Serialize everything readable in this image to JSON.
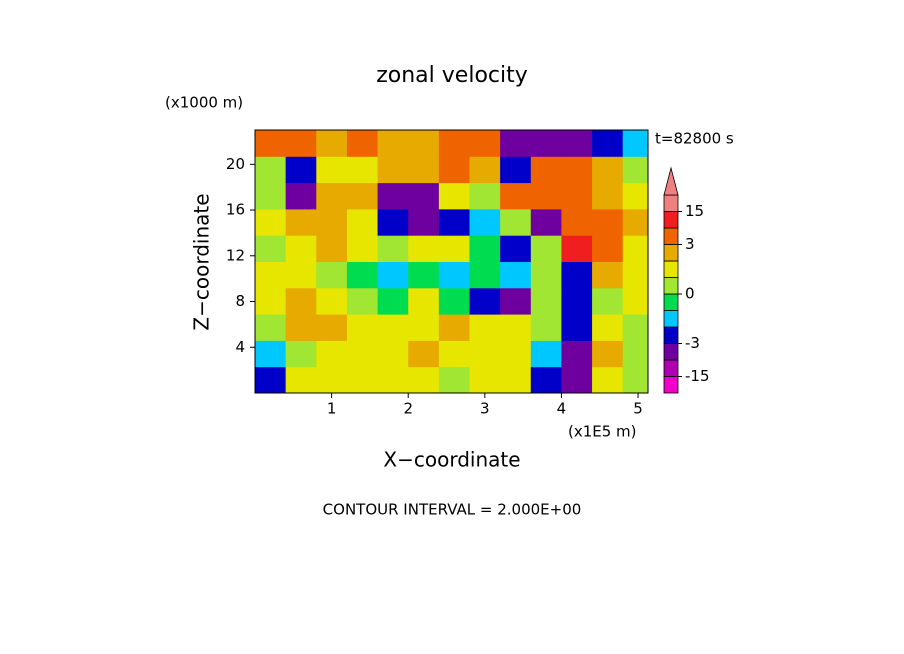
{
  "chart_data": {
    "type": "contour",
    "title": "zonal velocity",
    "y_unit": "(x1000 m)",
    "time_label": "t=82800 s",
    "y_label": "Z−coordinate",
    "x_label": "X−coordinate",
    "x_unit": "(x1E5 m)",
    "footer": "CONTOUR INTERVAL = 2.000E+00",
    "xlim": [
      0,
      5.13
    ],
    "ylim": [
      0,
      23
    ],
    "xticks": [
      1,
      2,
      3,
      4,
      5
    ],
    "yticks": [
      4,
      8,
      12,
      16,
      20
    ],
    "x": [
      0.2,
      0.6,
      1.0,
      1.4,
      1.8,
      2.2,
      2.6,
      3.0,
      3.4,
      3.8,
      4.2,
      4.6,
      5.0
    ],
    "z": [
      1.15,
      3.45,
      5.75,
      8.05,
      10.35,
      12.65,
      14.95,
      17.25,
      19.55,
      21.85
    ],
    "values": [
      [
        -2.5,
        1.5,
        1.5,
        1.5,
        1.5,
        1.5,
        0.5,
        1.5,
        1.5,
        -2.5,
        -5,
        1.5,
        0.5
      ],
      [
        -1.5,
        0.5,
        1.5,
        1.5,
        1.5,
        2.5,
        1.5,
        1.5,
        1.5,
        -1.5,
        -4,
        2.5,
        0.5
      ],
      [
        0.5,
        2.5,
        2.5,
        1.5,
        1.5,
        1.5,
        2.5,
        1.5,
        1.5,
        0.5,
        -2.5,
        1.5,
        0.5
      ],
      [
        1.5,
        2.5,
        1.5,
        0.5,
        -0.5,
        1.5,
        -0.5,
        -2.5,
        -4,
        0.5,
        -2.5,
        0.5,
        1.5
      ],
      [
        1.5,
        1.5,
        0.5,
        -0.5,
        -1.5,
        -0.5,
        -1.5,
        -0.5,
        -1.5,
        0.5,
        -2.5,
        2.5,
        1.5
      ],
      [
        0.5,
        1.5,
        2.5,
        1.5,
        0.5,
        1.5,
        1.5,
        -0.5,
        -2.5,
        0.5,
        12,
        5,
        1.5
      ],
      [
        1.5,
        2.5,
        2.5,
        1.5,
        -2.5,
        -4,
        -2.5,
        -1.5,
        0.5,
        -4,
        5,
        5,
        2.5
      ],
      [
        0.5,
        -4,
        2.5,
        2.5,
        -4,
        -5,
        1.5,
        0.5,
        5,
        5,
        5,
        2.5,
        1.5
      ],
      [
        0.5,
        -2.5,
        1.5,
        1.5,
        2.5,
        2.5,
        5,
        2.5,
        -2.5,
        5,
        5,
        2.5,
        0.5
      ],
      [
        5,
        5,
        2.5,
        5,
        2.5,
        2.5,
        5,
        5,
        -4,
        -6,
        -4,
        -2.5,
        -1.5
      ]
    ],
    "colorbar": {
      "levels": [
        -15,
        -9,
        -3,
        -2,
        -1,
        0,
        1,
        2,
        3,
        9,
        15
      ],
      "colors": [
        "#f000c8",
        "#b000b4",
        "#6e00a0",
        "#0000c8",
        "#00c8ff",
        "#00dc50",
        "#a0e632",
        "#e6e600",
        "#e6aa00",
        "#f06400",
        "#f01e1e",
        "#f08080"
      ],
      "ticks": [
        -15,
        -3,
        0,
        3,
        15
      ]
    }
  }
}
